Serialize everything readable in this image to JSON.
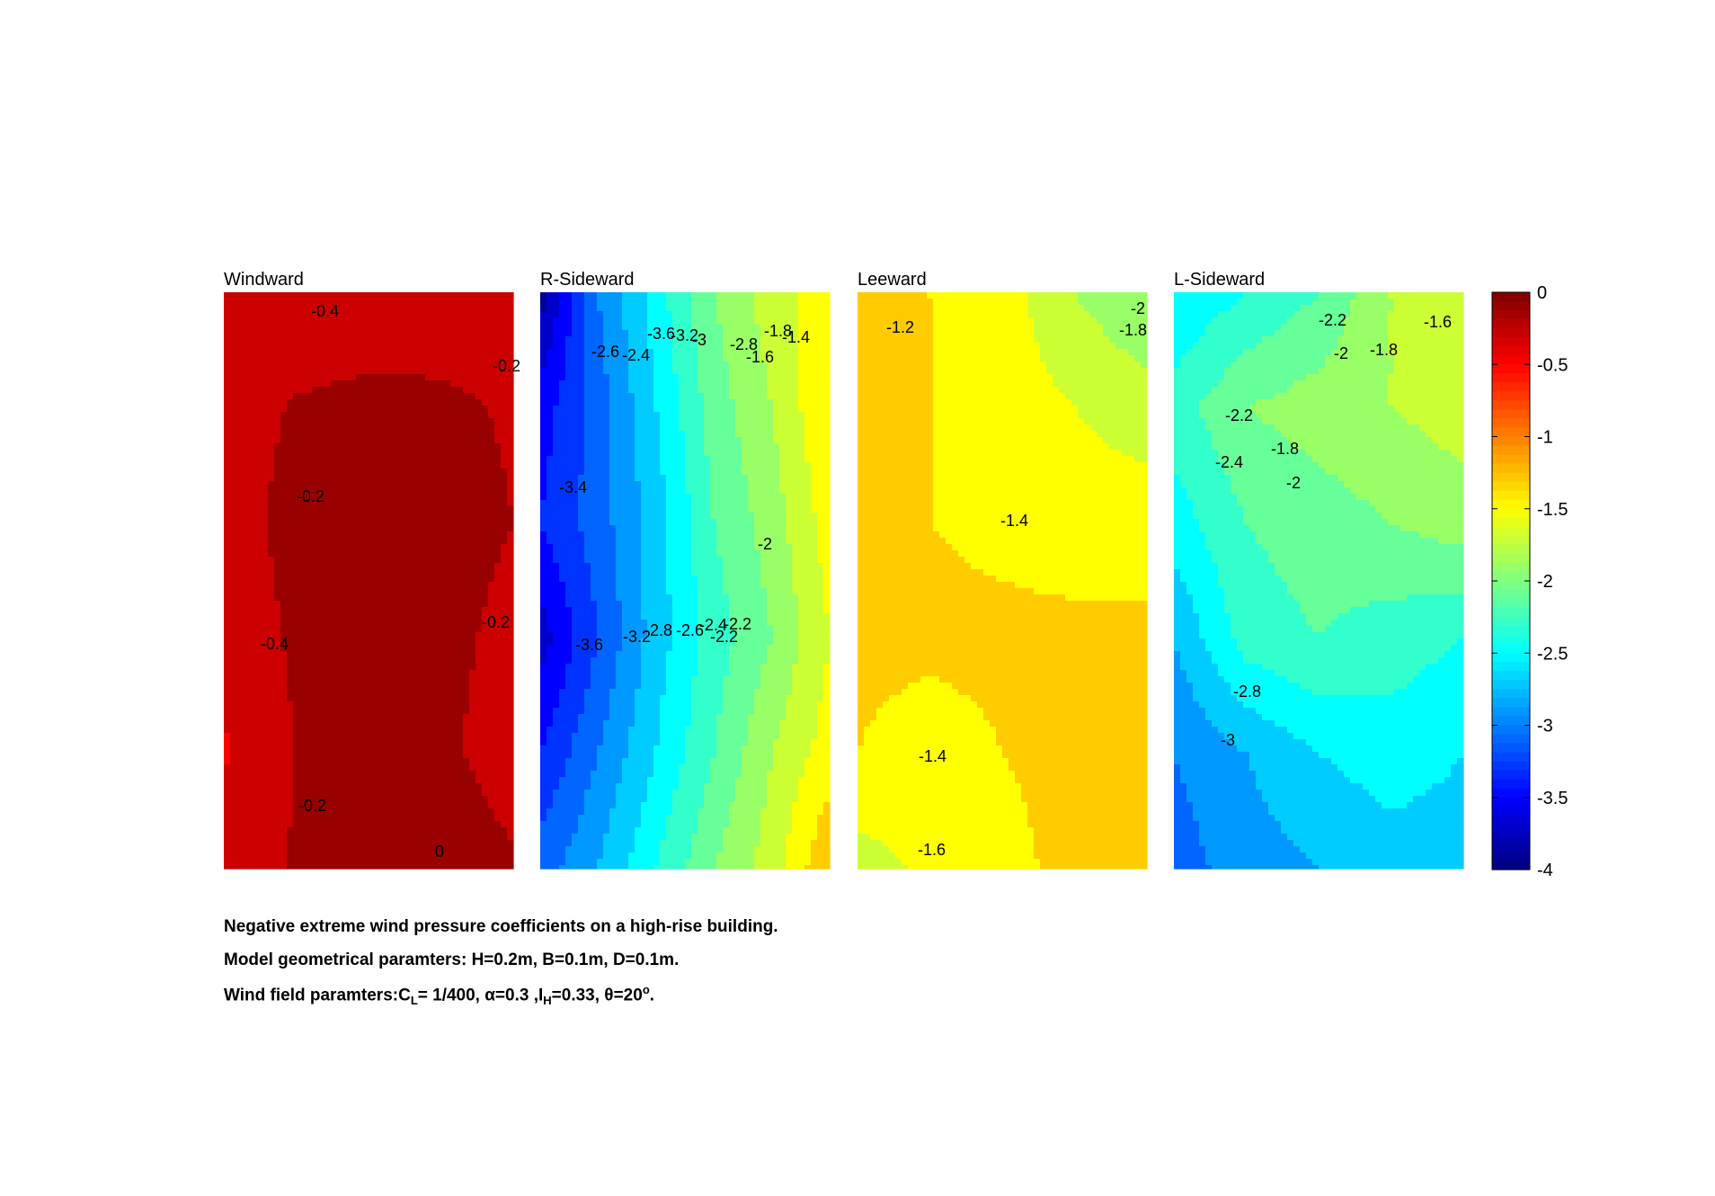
{
  "chart_data": {
    "type": "heatmap",
    "colorbar": {
      "ticks": [
        "0",
        "-0.5",
        "-1",
        "-1.5",
        "-2",
        "-2.5",
        "-3",
        "-3.5",
        "-4"
      ],
      "range": [
        -4,
        0
      ],
      "colormap": "jet"
    },
    "panels": [
      {
        "title": "Windward",
        "grid": [
          [
            -0.38,
            -0.36,
            -0.34,
            -0.32,
            -0.3
          ],
          [
            -0.3,
            -0.18,
            -0.14,
            -0.16,
            -0.22
          ],
          [
            -0.28,
            -0.14,
            -0.12,
            -0.12,
            -0.2
          ],
          [
            -0.36,
            -0.16,
            -0.12,
            -0.14,
            -0.26
          ],
          [
            -0.42,
            -0.2,
            -0.14,
            -0.16,
            -0.3
          ],
          [
            -0.3,
            -0.18,
            -0.1,
            -0.02,
            -0.18
          ]
        ],
        "contour_labels": [
          {
            "text": "-0.4",
            "value": -0.4
          },
          {
            "text": "-0.2",
            "value": -0.2
          },
          {
            "text": "-0.2",
            "value": -0.2
          },
          {
            "text": "-0.4",
            "value": -0.4
          },
          {
            "text": "-0.2",
            "value": -0.2
          },
          {
            "text": "-0.2",
            "value": -0.2
          },
          {
            "text": "0",
            "value": 0
          }
        ]
      },
      {
        "title": "R-Sideward",
        "grid": [
          [
            -3.9,
            -3.0,
            -2.5,
            -2.0,
            -1.7,
            -1.5
          ],
          [
            -3.5,
            -3.1,
            -2.6,
            -2.1,
            -1.8,
            -1.4
          ],
          [
            -3.4,
            -3.1,
            -2.7,
            -2.2,
            -1.9,
            -1.5
          ],
          [
            -3.7,
            -3.2,
            -2.7,
            -2.3,
            -2.0,
            -1.6
          ],
          [
            -3.4,
            -3.0,
            -2.6,
            -2.2,
            -1.8,
            -1.5
          ],
          [
            -3.1,
            -2.8,
            -2.4,
            -2.0,
            -1.7,
            -1.2
          ]
        ],
        "contour_labels": [
          {
            "text": "-3.6",
            "value": -3.6
          },
          {
            "text": "-3.2",
            "value": -3.2
          },
          {
            "text": "-2.8",
            "value": -2.8
          },
          {
            "text": "-2.6",
            "value": -2.6
          },
          {
            "text": "-2.4",
            "value": -2.4
          },
          {
            "text": "-2.2",
            "value": -2.2
          },
          {
            "text": "-1.8",
            "value": -1.8
          },
          {
            "text": "-1.6",
            "value": -1.6
          },
          {
            "text": "-1.4",
            "value": -1.4
          },
          {
            "text": "-3.4",
            "value": -3.4
          },
          {
            "text": "-2",
            "value": -2
          },
          {
            "text": "-3.6",
            "value": -3.6
          },
          {
            "text": "-3.2",
            "value": -3.2
          },
          {
            "text": "-3",
            "value": -3
          },
          {
            "text": "-2.8",
            "value": -2.8
          },
          {
            "text": "-2.6",
            "value": -2.6
          },
          {
            "text": "-2.4",
            "value": -2.4
          },
          {
            "text": "-2.2",
            "value": -2.2
          },
          {
            "text": "-1.8",
            "value": -1.8
          },
          {
            "text": "-1.6",
            "value": -1.6
          },
          {
            "text": "-1.4",
            "value": -1.4
          },
          {
            "text": "-2",
            "value": -2
          }
        ]
      },
      {
        "title": "Leeward",
        "grid": [
          [
            -1.2,
            -1.4,
            -1.5,
            -1.8,
            -2.0
          ],
          [
            -1.3,
            -1.4,
            -1.5,
            -1.6,
            -1.7
          ],
          [
            -1.35,
            -1.4,
            -1.45,
            -1.5,
            -1.5
          ],
          [
            -1.35,
            -1.35,
            -1.35,
            -1.35,
            -1.35
          ],
          [
            -1.4,
            -1.5,
            -1.4,
            -1.35,
            -1.35
          ],
          [
            -1.7,
            -1.55,
            -1.45,
            -1.35,
            -1.35
          ]
        ],
        "contour_labels": [
          {
            "text": "-1.2",
            "value": -1.2
          },
          {
            "text": "-2",
            "value": -2
          },
          {
            "text": "-1.8",
            "value": -1.8
          },
          {
            "text": "-1.4",
            "value": -1.4
          },
          {
            "text": "-1.4",
            "value": -1.4
          },
          {
            "text": "-1.6",
            "value": -1.6
          }
        ]
      },
      {
        "title": "L-Sideward",
        "grid": [
          [
            -2.6,
            -2.4,
            -2.2,
            -1.8,
            -1.6
          ],
          [
            -2.3,
            -2.0,
            -1.9,
            -1.8,
            -1.7
          ],
          [
            -2.5,
            -2.2,
            -2.1,
            -2.0,
            -1.9
          ],
          [
            -2.8,
            -2.3,
            -2.2,
            -2.3,
            -2.4
          ],
          [
            -3.0,
            -2.8,
            -2.6,
            -2.5,
            -2.6
          ],
          [
            -3.1,
            -2.9,
            -2.8,
            -2.7,
            -2.7
          ]
        ],
        "contour_labels": [
          {
            "text": "-2.2",
            "value": -2.2
          },
          {
            "text": "-1.6",
            "value": -1.6
          },
          {
            "text": "-2",
            "value": -2
          },
          {
            "text": "-1.8",
            "value": -1.8
          },
          {
            "text": "-2.2",
            "value": -2.2
          },
          {
            "text": "-1.8",
            "value": -1.8
          },
          {
            "text": "-2.4",
            "value": -2.4
          },
          {
            "text": "-2",
            "value": -2
          },
          {
            "text": "-2.8",
            "value": -2.8
          },
          {
            "text": "-3",
            "value": -3
          }
        ]
      }
    ]
  },
  "caption": {
    "line1": "Negative extreme wind pressure coefficients on a high-rise building.",
    "line2": "Model geometrical paramters: H=0.2m, B=0.1m, D=0.1m.",
    "line3_prefix": "Wind field paramters:C",
    "line3_sub1": "L",
    "line3_mid1": "= 1/400, α=0.3 ,I",
    "line3_sub2": "H",
    "line3_mid2": "=0.33, θ=20",
    "line3_sup": "o",
    "line3_end": "."
  }
}
